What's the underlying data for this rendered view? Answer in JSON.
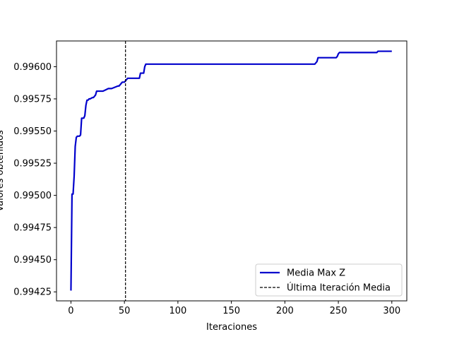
{
  "chart_data": {
    "type": "line",
    "title": "",
    "xlabel": "Iteraciones",
    "ylabel": "Valores obtenidos",
    "xlim": [
      -13.5,
      314
    ],
    "ylim": [
      0.99418,
      0.9962
    ],
    "xticks": [
      0,
      50,
      100,
      150,
      200,
      250,
      300
    ],
    "yticks": [
      0.99425,
      0.9945,
      0.99475,
      0.995,
      0.99525,
      0.9955,
      0.99575,
      0.996
    ],
    "ytick_labels": [
      "0.99425",
      "0.99450",
      "0.99475",
      "0.99500",
      "0.99525",
      "0.99550",
      "0.99575",
      "0.99600"
    ],
    "grid": false,
    "legend_position": "lower-right",
    "series": [
      {
        "name": "Media Max Z",
        "color": "#0000cc",
        "style": "solid",
        "x": [
          0,
          1,
          2,
          3,
          4,
          5,
          6,
          7,
          8,
          9,
          10,
          12,
          13,
          14,
          15,
          16,
          17,
          18,
          20,
          21,
          23,
          24,
          25,
          27,
          30,
          35,
          37,
          38,
          44,
          45,
          47,
          48,
          50,
          51,
          52,
          53,
          55,
          64,
          65,
          68,
          69,
          70,
          71,
          80,
          100,
          150,
          200,
          228,
          229,
          230,
          231,
          232,
          248,
          249,
          250,
          251,
          252,
          286,
          287,
          288,
          300
        ],
        "y": [
          0.99426,
          0.99501,
          0.99501,
          0.99515,
          0.99538,
          0.99545,
          0.99546,
          0.99546,
          0.99546,
          0.99547,
          0.9956,
          0.9956,
          0.99562,
          0.9957,
          0.99574,
          0.99574,
          0.99575,
          0.99575,
          0.99576,
          0.99576,
          0.99578,
          0.99581,
          0.99581,
          0.99581,
          0.99581,
          0.99583,
          0.99583,
          0.99583,
          0.99585,
          0.99585,
          0.99587,
          0.99588,
          0.99588,
          0.99589,
          0.9959,
          0.99591,
          0.99591,
          0.99591,
          0.99595,
          0.99595,
          0.996,
          0.99602,
          0.99602,
          0.99602,
          0.99602,
          0.99602,
          0.99602,
          0.99602,
          0.99603,
          0.99604,
          0.99607,
          0.99607,
          0.99607,
          0.99608,
          0.9961,
          0.99611,
          0.99611,
          0.99611,
          0.99612,
          0.99612,
          0.99612
        ]
      }
    ],
    "vlines": [
      {
        "name": "Última Iteración Media",
        "x": 51,
        "color": "#000000",
        "style": "dashed"
      }
    ]
  }
}
